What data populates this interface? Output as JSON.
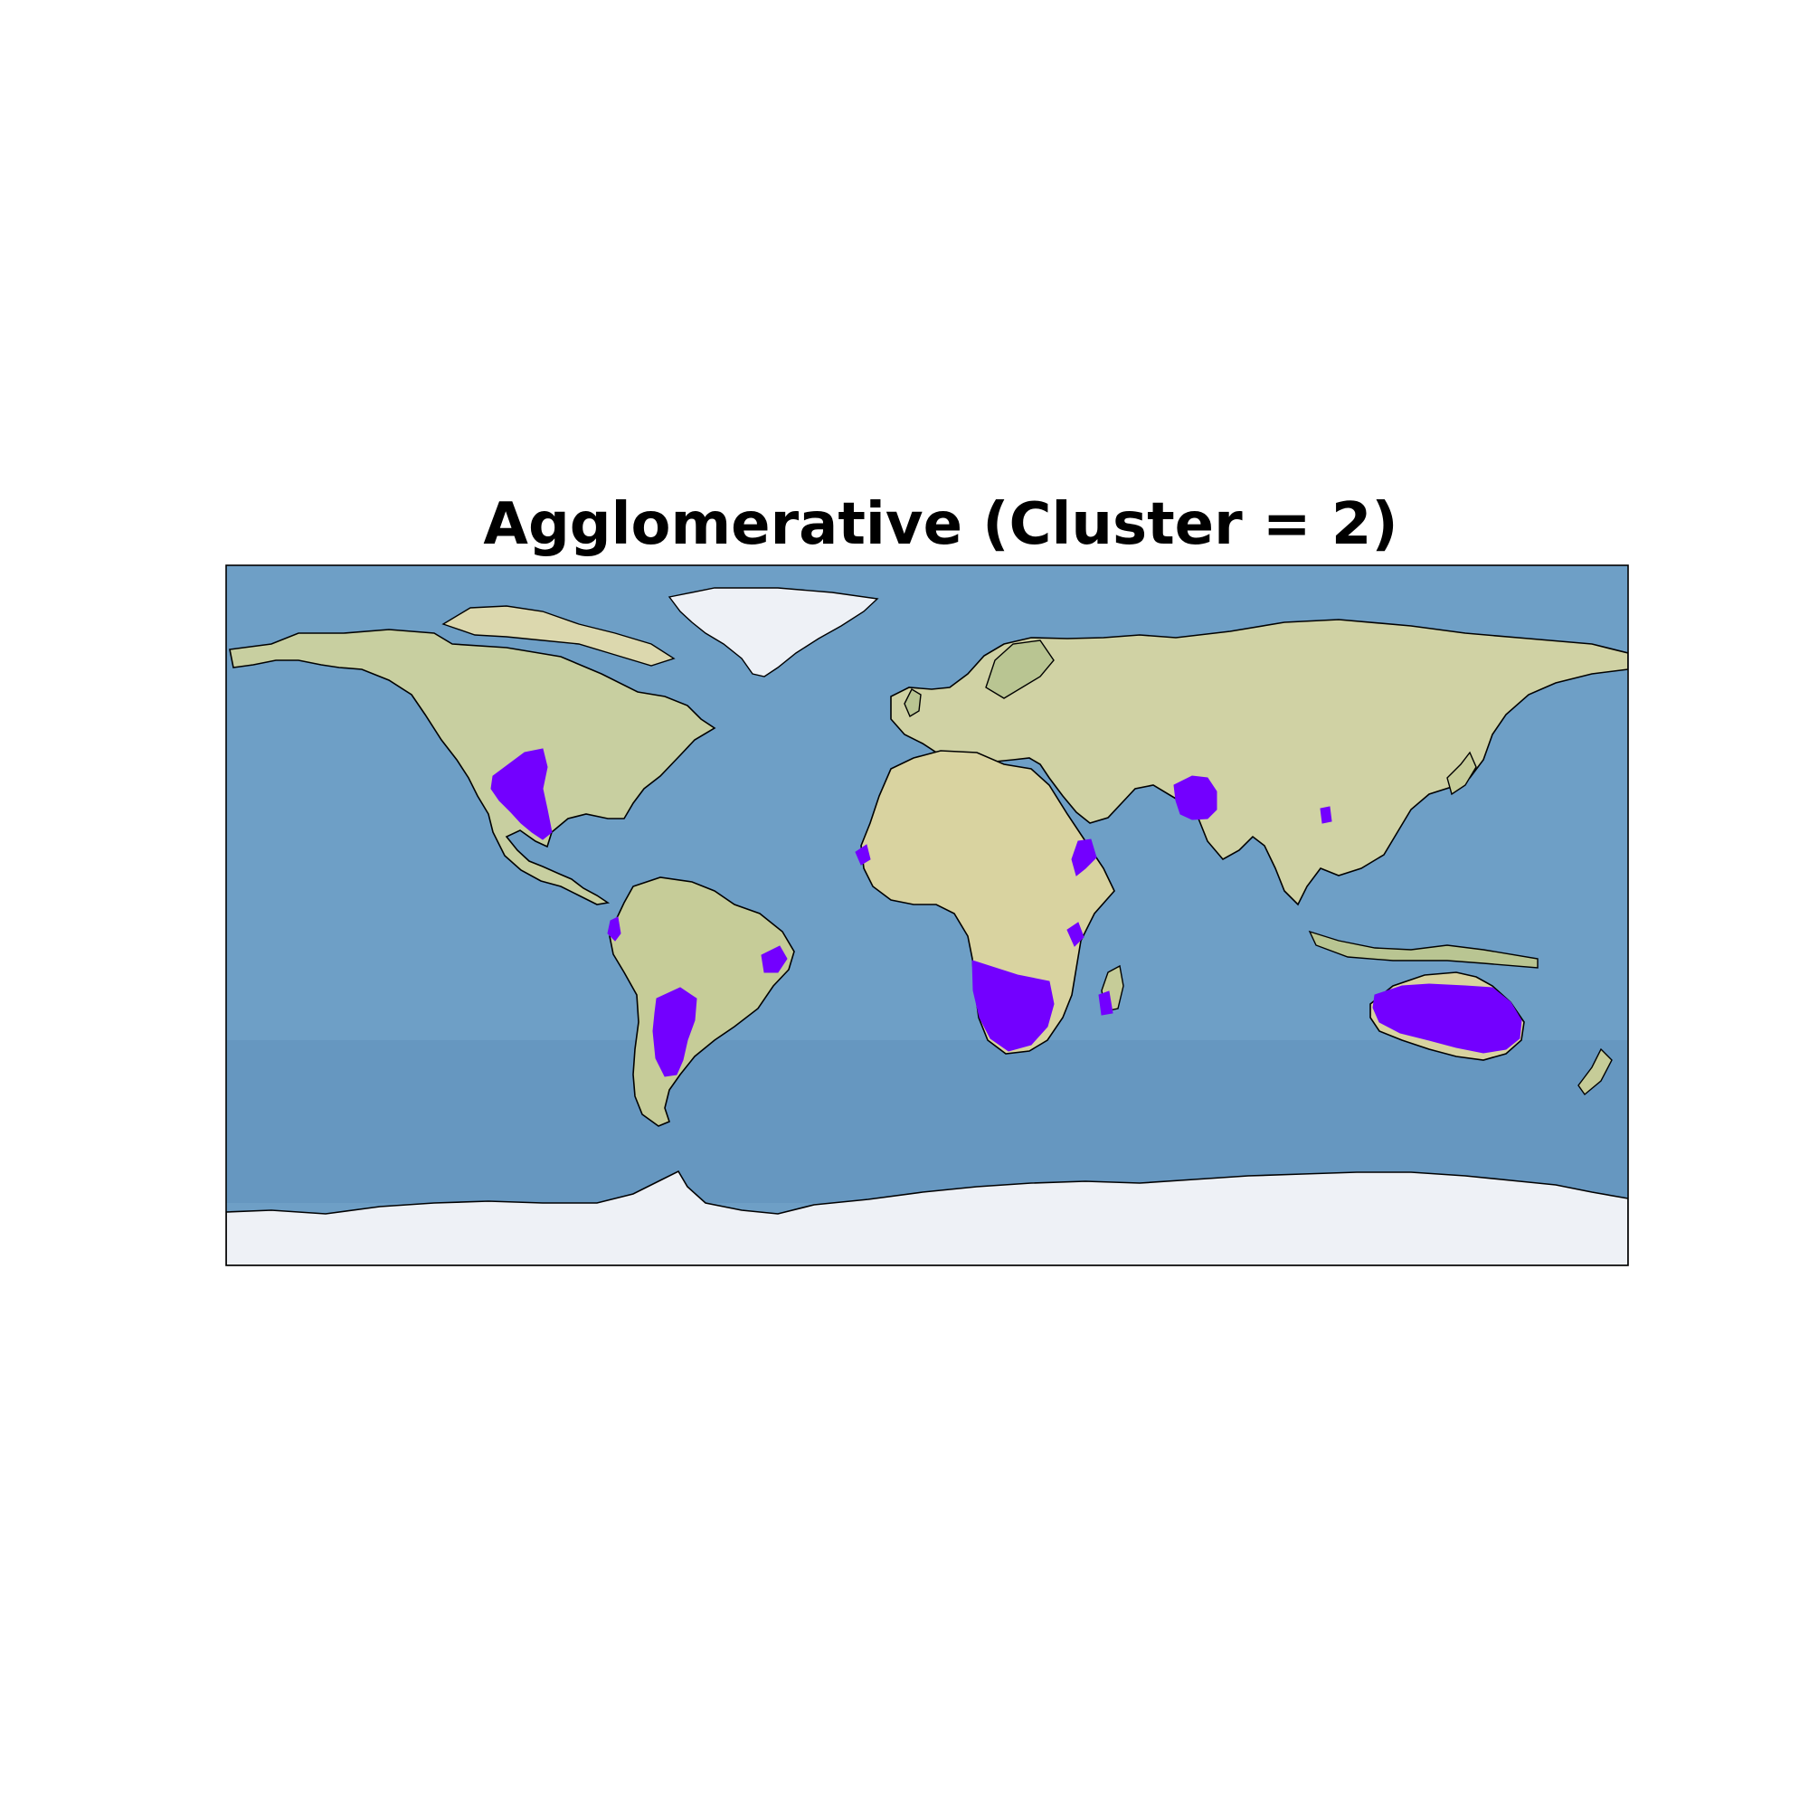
{
  "title": "Agglomerative (Cluster = 2)",
  "colors": {
    "ocean": "#6e9fc6",
    "ocean_deep": "#5d8fba",
    "land": "#dcd8ae",
    "land_green": "#a9bc88",
    "ice": "#eef1f6",
    "coast": "#000000",
    "cluster": "#7300ff"
  },
  "clusters": [
    {
      "region": "Southwest US / Mexico",
      "lon": -105,
      "lat": 28
    },
    {
      "region": "Peru coast",
      "lon": -79,
      "lat": -7
    },
    {
      "region": "Northeast Brazil",
      "lon": -40,
      "lat": -9
    },
    {
      "region": "Argentina / Chile",
      "lon": -66,
      "lat": -28
    },
    {
      "region": "Senegal",
      "lon": -16,
      "lat": 15
    },
    {
      "region": "Southern Africa",
      "lon": 22,
      "lat": -26
    },
    {
      "region": "Kenya coast",
      "lon": 40,
      "lat": -2
    },
    {
      "region": "Madagascar",
      "lon": 44,
      "lat": -21
    },
    {
      "region": "Horn of Africa / Yemen",
      "lon": 43,
      "lat": 13
    },
    {
      "region": "Pakistan / NW India",
      "lon": 70,
      "lat": 27
    },
    {
      "region": "Myanmar",
      "lon": 96,
      "lat": 21
    },
    {
      "region": "Australia",
      "lon": 134,
      "lat": -25
    }
  ]
}
